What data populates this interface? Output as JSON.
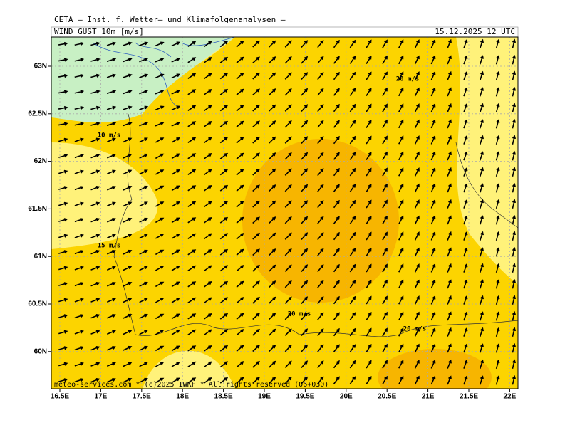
{
  "header": {
    "title": "CETA — Inst. f. Wetter— und Klimafolgenanalysen —",
    "field": "WIND_GUST_10m_[m/s]",
    "datetime": "15.12.2025 12 UTC"
  },
  "map": {
    "y_labels": [
      "63N",
      "62.5N",
      "62N",
      "61.5N",
      "61N",
      "60.5N",
      "60N"
    ],
    "x_labels": [
      "16.5E",
      "17E",
      "17.5E",
      "18E",
      "18.5E",
      "19E",
      "19.5E",
      "20E",
      "20.5E",
      "21E",
      "21.5E",
      "22E"
    ],
    "contour_labels": [
      "10 m/s",
      "15 m/s",
      "20 m/s",
      "20 m/s",
      "20 m/s"
    ],
    "credit": "meteo-services.com * (c)2025 IWKF * All rights reserved (06+030)"
  }
}
